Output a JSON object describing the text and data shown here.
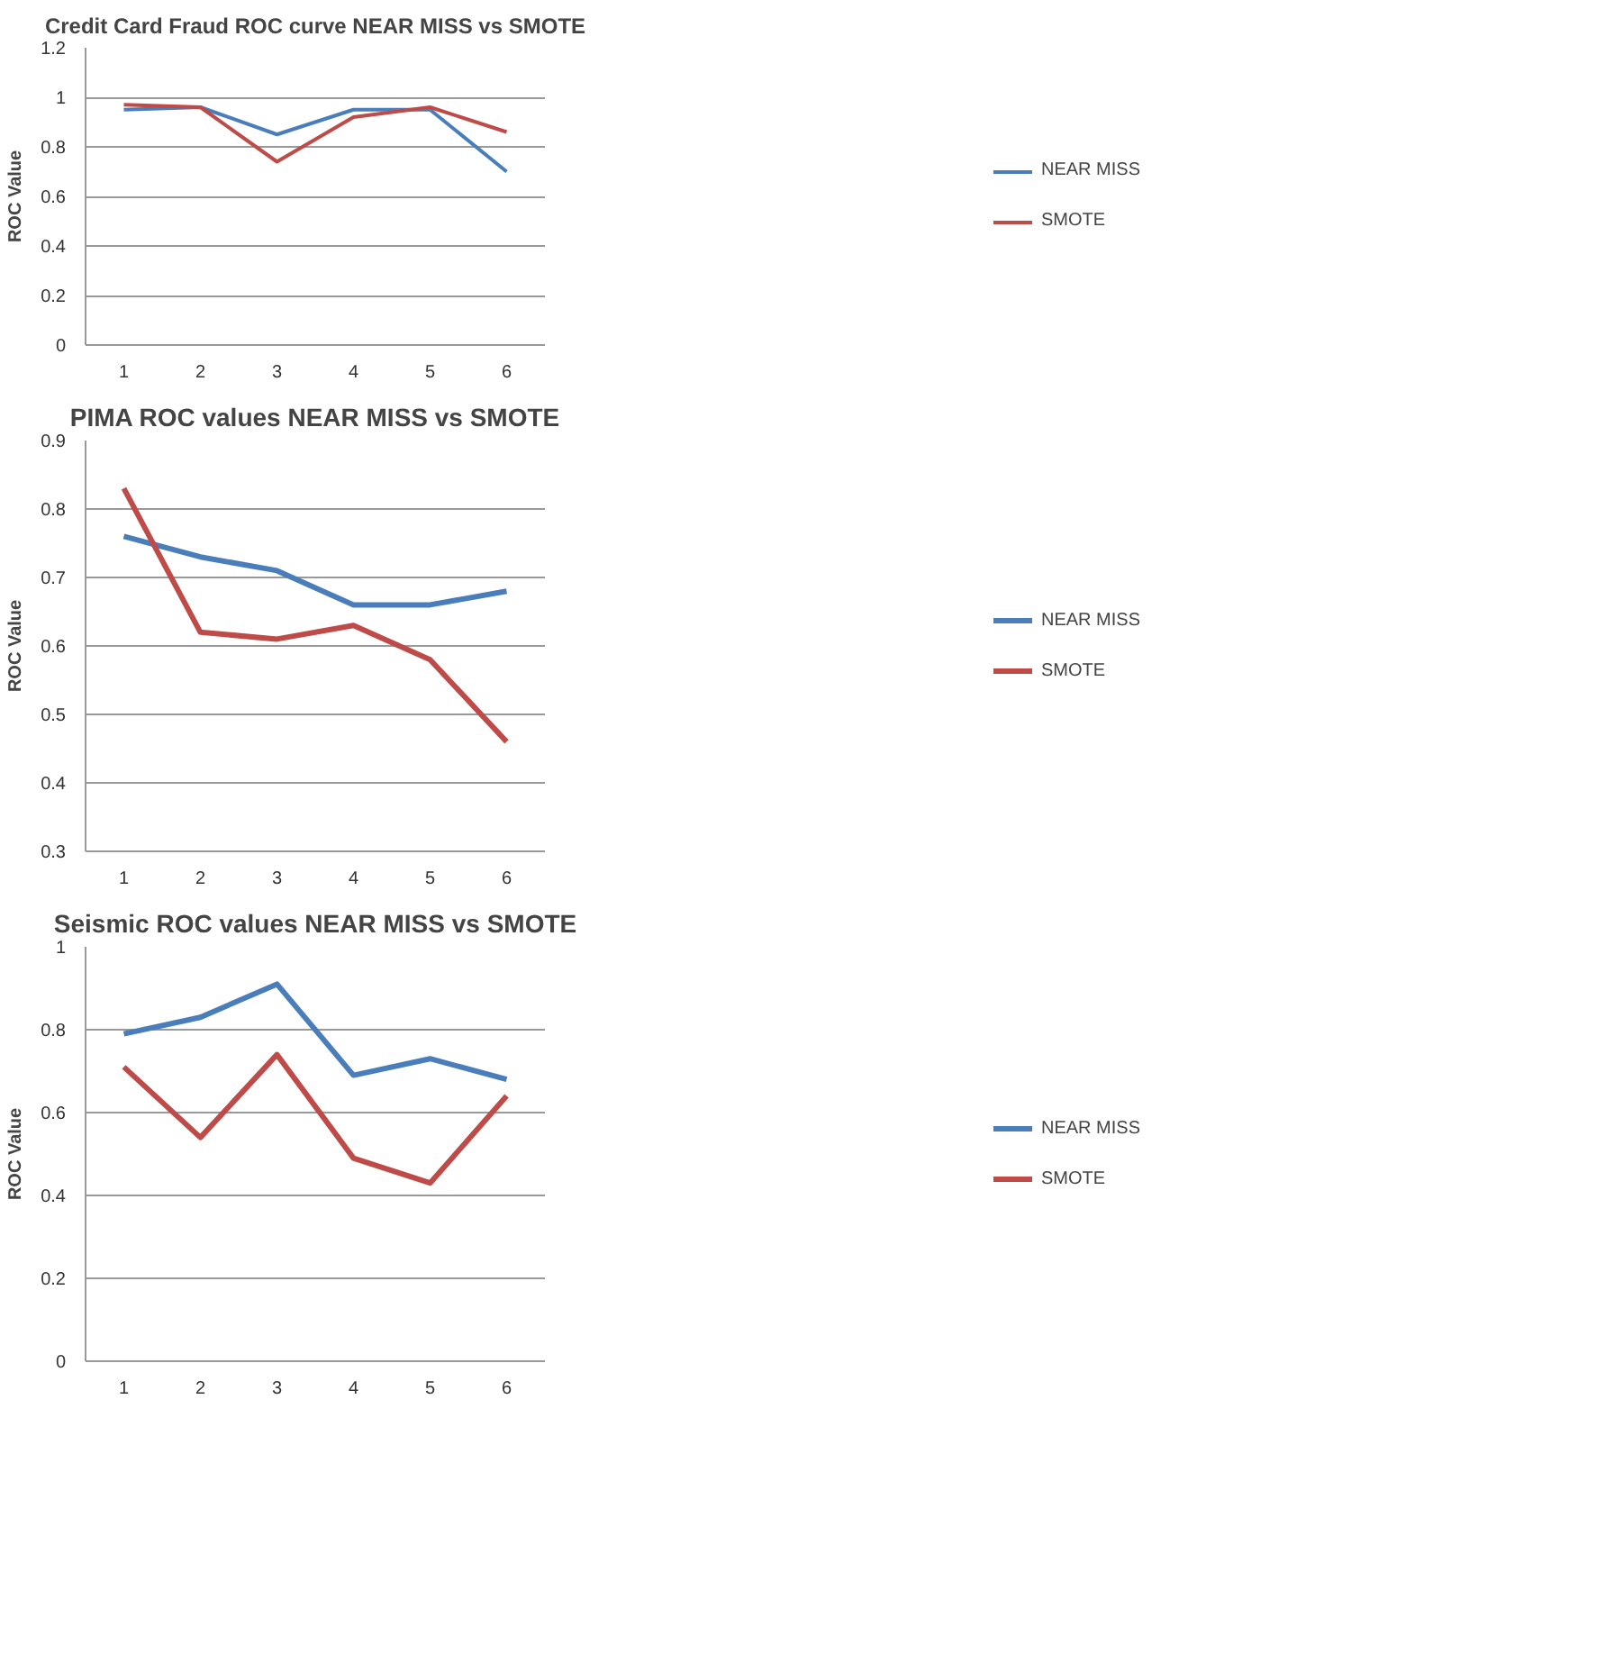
{
  "chart_data": [
    {
      "type": "line",
      "title": "Credit Card Fraud ROC curve NEAR MISS vs SMOTE",
      "ylabel": "ROC Value",
      "categories": [
        "1",
        "2",
        "3",
        "4",
        "5",
        "6"
      ],
      "ylim": [
        0,
        1.2
      ],
      "yticks": [
        0,
        0.2,
        0.4,
        0.6,
        0.8,
        1,
        1.2
      ],
      "grid": "y",
      "legend": "right",
      "marker": "none",
      "line_style": "solid",
      "series": [
        {
          "name": "NEAR MISS",
          "color": "#4a7ebb",
          "values": [
            0.95,
            0.96,
            0.85,
            0.95,
            0.95,
            0.7
          ]
        },
        {
          "name": "SMOTE",
          "color": "#be4b48",
          "values": [
            0.97,
            0.96,
            0.74,
            0.92,
            0.96,
            0.86
          ]
        }
      ]
    },
    {
      "type": "line",
      "title": "PIMA ROC values NEAR MISS vs SMOTE",
      "ylabel": "ROC Value",
      "categories": [
        "1",
        "2",
        "3",
        "4",
        "5",
        "6"
      ],
      "ylim": [
        0.3,
        0.9
      ],
      "yticks": [
        0.3,
        0.4,
        0.5,
        0.6,
        0.7,
        0.8,
        0.9
      ],
      "grid": "y",
      "legend": "right",
      "marker": "none",
      "line_style": "solid",
      "series": [
        {
          "name": "NEAR MISS",
          "color": "#4a7ebb",
          "values": [
            0.76,
            0.73,
            0.71,
            0.66,
            0.66,
            0.68
          ]
        },
        {
          "name": "SMOTE",
          "color": "#be4b48",
          "values": [
            0.83,
            0.62,
            0.61,
            0.63,
            0.58,
            0.46
          ]
        }
      ]
    },
    {
      "type": "line",
      "title": "Seismic ROC values NEAR MISS vs SMOTE",
      "ylabel": "ROC Value",
      "categories": [
        "1",
        "2",
        "3",
        "4",
        "5",
        "6"
      ],
      "ylim": [
        0,
        1
      ],
      "yticks": [
        0,
        0.2,
        0.4,
        0.6,
        0.8,
        1
      ],
      "grid": "y",
      "legend": "right",
      "marker": "none",
      "line_style": "solid",
      "series": [
        {
          "name": "NEAR MISS",
          "color": "#4a7ebb",
          "values": [
            0.79,
            0.83,
            0.91,
            0.69,
            0.73,
            0.68
          ]
        },
        {
          "name": "SMOTE",
          "color": "#be4b48",
          "values": [
            0.71,
            0.54,
            0.74,
            0.49,
            0.43,
            0.64
          ]
        }
      ]
    }
  ]
}
